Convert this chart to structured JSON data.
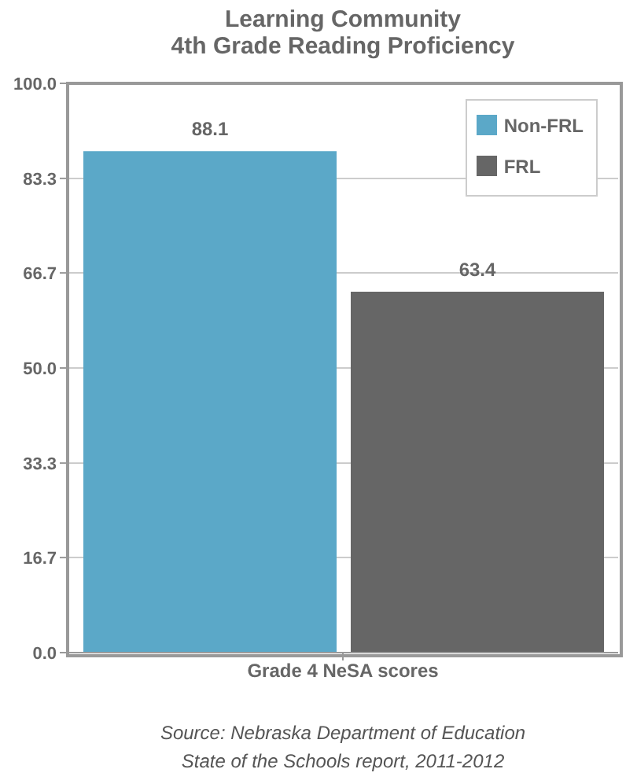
{
  "chart_data": {
    "type": "bar",
    "title": "Learning Community\n4th Grade Reading Proficiency",
    "categories": [
      "Grade 4 NeSA scores"
    ],
    "series": [
      {
        "name": "Non-FRL",
        "color": "#5ba8c8",
        "values": [
          88.1
        ]
      },
      {
        "name": "FRL",
        "color": "#666666",
        "values": [
          63.4
        ]
      }
    ],
    "ylim": [
      0,
      100
    ],
    "yticks": [
      {
        "value": 0,
        "label": "0.0"
      },
      {
        "value": 16.7,
        "label": "16.7"
      },
      {
        "value": 33.3,
        "label": "33.3"
      },
      {
        "value": 50,
        "label": "50.0"
      },
      {
        "value": 66.7,
        "label": "66.7"
      },
      {
        "value": 83.3,
        "label": "83.3"
      },
      {
        "value": 100,
        "label": "100.0"
      }
    ],
    "grid": "y",
    "legend": "top right",
    "data_labels": true,
    "annotations": [
      "Source: Nebraska Department of Education\nState of the Schools report, 2011-2012"
    ]
  }
}
